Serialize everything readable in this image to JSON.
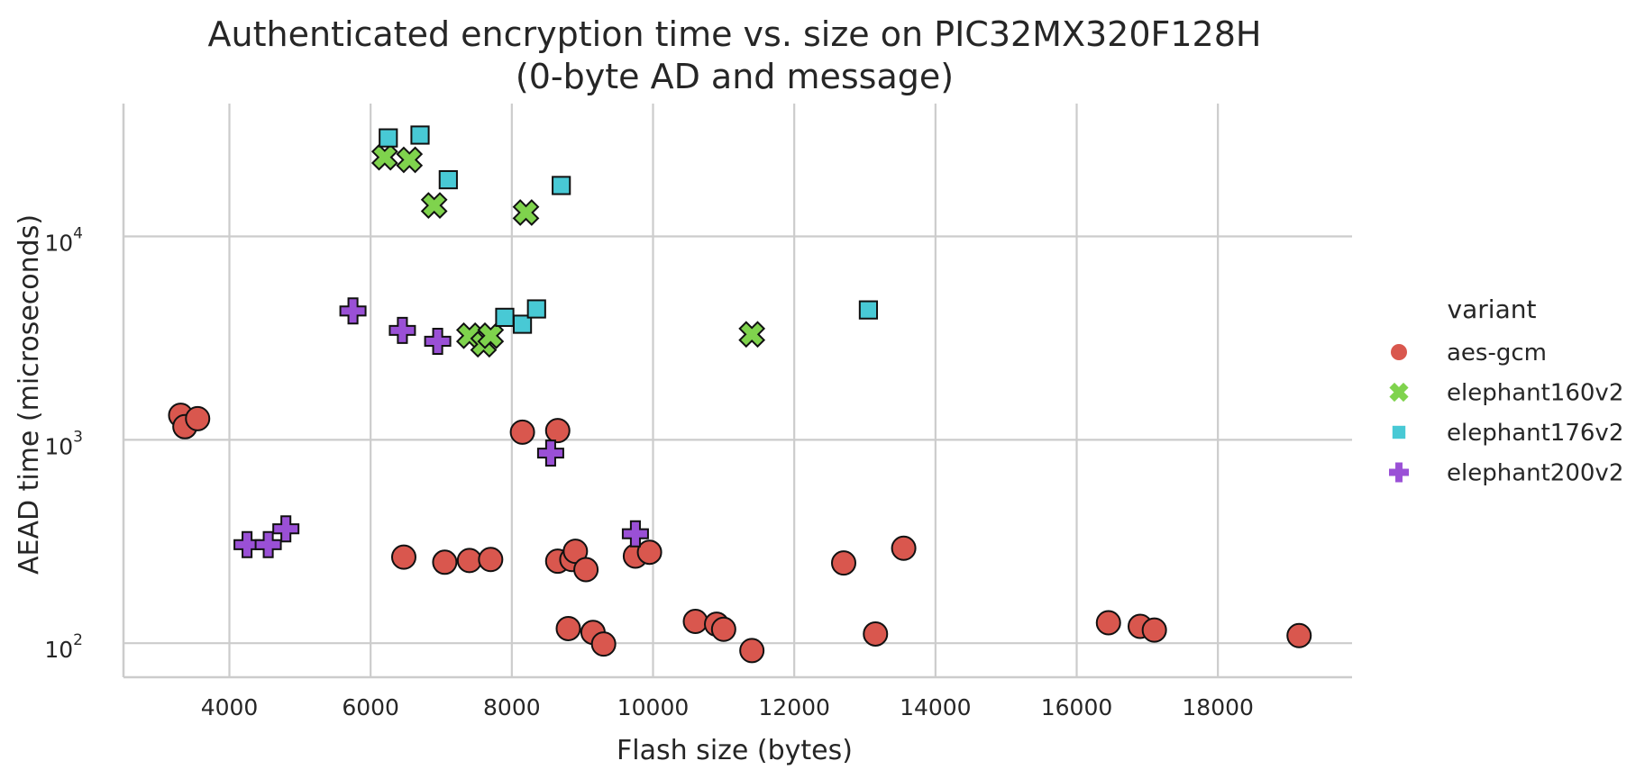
{
  "chart_data": {
    "type": "scatter",
    "title": [
      "Authenticated encryption time vs. size on PIC32MX320F128H",
      "(0-byte AD and message)"
    ],
    "xlabel": "Flash size (bytes)",
    "ylabel": "AEAD time (microseconds)",
    "xlim": [
      2500,
      19900
    ],
    "ylim": [
      68,
      45000
    ],
    "yscale": "log",
    "grid": true,
    "xticks": [
      4000,
      6000,
      8000,
      10000,
      12000,
      14000,
      16000,
      18000
    ],
    "yticks": [
      {
        "value": 100,
        "base": "10",
        "exp": "2"
      },
      {
        "value": 1000,
        "base": "10",
        "exp": "3"
      },
      {
        "value": 10000,
        "base": "10",
        "exp": "4"
      }
    ],
    "legend": {
      "title": "variant",
      "placement": "right"
    },
    "series": [
      {
        "name": "aes-gcm",
        "marker": "circle",
        "color": "#d9574e",
        "points": [
          [
            3310,
            1320
          ],
          [
            3370,
            1160
          ],
          [
            3550,
            1270
          ],
          [
            6470,
            265
          ],
          [
            7050,
            250
          ],
          [
            7400,
            255
          ],
          [
            7700,
            258
          ],
          [
            8150,
            1090
          ],
          [
            8650,
            1110
          ],
          [
            8650,
            253
          ],
          [
            8850,
            258
          ],
          [
            8900,
            283
          ],
          [
            9050,
            230
          ],
          [
            8800,
            118
          ],
          [
            9150,
            113
          ],
          [
            9300,
            99
          ],
          [
            9750,
            268
          ],
          [
            9950,
            280
          ],
          [
            10600,
            128
          ],
          [
            10900,
            124
          ],
          [
            11000,
            117
          ],
          [
            11400,
            92
          ],
          [
            12700,
            248
          ],
          [
            13150,
            111
          ],
          [
            13550,
            293
          ],
          [
            16450,
            126
          ],
          [
            16900,
            121
          ],
          [
            17100,
            116
          ],
          [
            19150,
            109
          ]
        ]
      },
      {
        "name": "elephant160v2",
        "marker": "x",
        "color": "#7fd34d",
        "points": [
          [
            6200,
            24500
          ],
          [
            6550,
            23800
          ],
          [
            6900,
            14200
          ],
          [
            7400,
            3250
          ],
          [
            7600,
            2950
          ],
          [
            7700,
            3250
          ],
          [
            8200,
            13100
          ],
          [
            11400,
            3300
          ]
        ]
      },
      {
        "name": "elephant176v2",
        "marker": "square",
        "color": "#48c9d5",
        "points": [
          [
            6250,
            30500
          ],
          [
            6700,
            31500
          ],
          [
            7100,
            19000
          ],
          [
            7900,
            4000
          ],
          [
            8150,
            3700
          ],
          [
            8350,
            4400
          ],
          [
            8700,
            17800
          ],
          [
            13050,
            4350
          ]
        ]
      },
      {
        "name": "elephant200v2",
        "marker": "plus",
        "color": "#9a50d6",
        "points": [
          [
            4250,
            305
          ],
          [
            4550,
            305
          ],
          [
            4800,
            365
          ],
          [
            5750,
            4300
          ],
          [
            6450,
            3450
          ],
          [
            6950,
            3050
          ],
          [
            8550,
            860
          ],
          [
            9750,
            345
          ]
        ]
      }
    ]
  }
}
